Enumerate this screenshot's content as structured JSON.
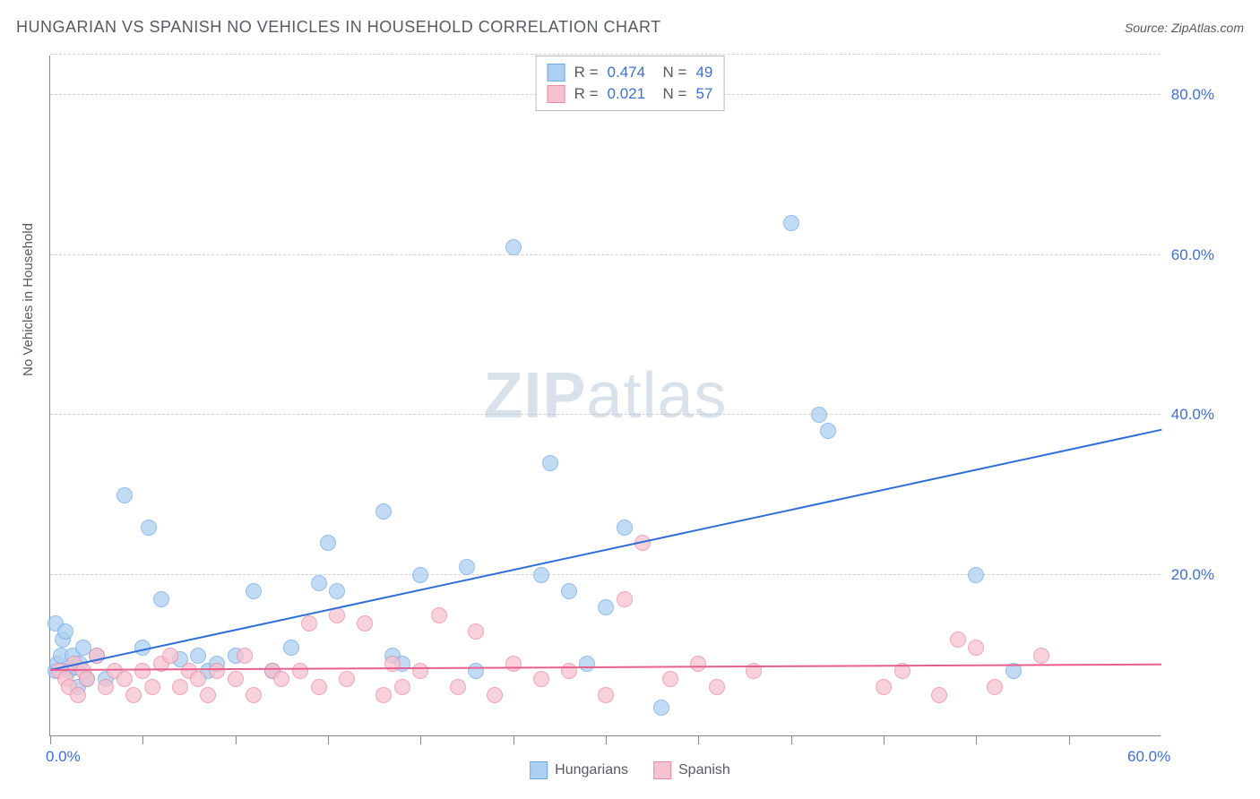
{
  "title": "HUNGARIAN VS SPANISH NO VEHICLES IN HOUSEHOLD CORRELATION CHART",
  "source": "Source: ZipAtlas.com",
  "ylabel": "No Vehicles in Household",
  "watermark_a": "ZIP",
  "watermark_b": "atlas",
  "chart": {
    "type": "scatter",
    "xlim": [
      0,
      60
    ],
    "ylim": [
      0,
      85
    ],
    "background_color": "#ffffff",
    "grid_color": "#d0d0d0",
    "y_gridlines": [
      20,
      40,
      60,
      80,
      85
    ],
    "y_tick_labels": [
      {
        "v": 20,
        "t": "20.0%"
      },
      {
        "v": 40,
        "t": "40.0%"
      },
      {
        "v": 60,
        "t": "60.0%"
      },
      {
        "v": 80,
        "t": "80.0%"
      }
    ],
    "x_ticks": [
      0,
      5,
      10,
      15,
      20,
      25,
      30,
      35,
      40,
      45,
      50,
      55
    ],
    "x_tick_labels": [
      {
        "v": 0,
        "t": "0.0%"
      },
      {
        "v": 60,
        "t": "60.0%"
      }
    ],
    "marker_radius": 9,
    "marker_stroke_width": 1,
    "series": [
      {
        "name": "Hungarians",
        "fill": "#add0f2",
        "stroke": "#6fa8e8",
        "trend_color": "#2e6fd9",
        "trend": {
          "x1": 0,
          "y1": 8,
          "x2": 60,
          "y2": 38
        },
        "R": "0.474",
        "N": "49",
        "points": [
          [
            0.3,
            8
          ],
          [
            0.3,
            14
          ],
          [
            0.4,
            9
          ],
          [
            0.6,
            10
          ],
          [
            0.7,
            12
          ],
          [
            0.8,
            13
          ],
          [
            1.0,
            8
          ],
          [
            1.2,
            10
          ],
          [
            1.4,
            8.5
          ],
          [
            1.5,
            6
          ],
          [
            1.6,
            9
          ],
          [
            1.8,
            11
          ],
          [
            2.0,
            7
          ],
          [
            2.5,
            10
          ],
          [
            3.0,
            7
          ],
          [
            4.0,
            30
          ],
          [
            5.0,
            11
          ],
          [
            5.3,
            26
          ],
          [
            6.0,
            17
          ],
          [
            7.0,
            9.5
          ],
          [
            8.0,
            10
          ],
          [
            8.5,
            8
          ],
          [
            9.0,
            9
          ],
          [
            10.0,
            10
          ],
          [
            11.0,
            18
          ],
          [
            12.0,
            8
          ],
          [
            13.0,
            11
          ],
          [
            14.5,
            19
          ],
          [
            15.0,
            24
          ],
          [
            15.5,
            18
          ],
          [
            18.0,
            28
          ],
          [
            18.5,
            10
          ],
          [
            19.0,
            9
          ],
          [
            20.0,
            20
          ],
          [
            22.5,
            21
          ],
          [
            23.0,
            8
          ],
          [
            25.0,
            61
          ],
          [
            26.5,
            20
          ],
          [
            27.0,
            34
          ],
          [
            28.0,
            18
          ],
          [
            29.0,
            9
          ],
          [
            30.0,
            16
          ],
          [
            31.0,
            26
          ],
          [
            33.0,
            3.5
          ],
          [
            40.0,
            64
          ],
          [
            41.5,
            40
          ],
          [
            42.0,
            38
          ],
          [
            50.0,
            20
          ],
          [
            52.0,
            8
          ]
        ]
      },
      {
        "name": "Spanish",
        "fill": "#f6c2cf",
        "stroke": "#e98aa4",
        "trend_color": "#e85f8e",
        "trend": {
          "x1": 0,
          "y1": 8,
          "x2": 60,
          "y2": 8.7
        },
        "R": "0.021",
        "N": "57",
        "points": [
          [
            0.5,
            8
          ],
          [
            0.8,
            7
          ],
          [
            1.0,
            6
          ],
          [
            1.3,
            9
          ],
          [
            1.5,
            5
          ],
          [
            1.8,
            8
          ],
          [
            2.0,
            7
          ],
          [
            2.5,
            10
          ],
          [
            3.0,
            6
          ],
          [
            3.5,
            8
          ],
          [
            4.0,
            7
          ],
          [
            4.5,
            5
          ],
          [
            5.0,
            8
          ],
          [
            5.5,
            6
          ],
          [
            6.0,
            9
          ],
          [
            6.5,
            10
          ],
          [
            7.0,
            6
          ],
          [
            7.5,
            8
          ],
          [
            8.0,
            7
          ],
          [
            8.5,
            5
          ],
          [
            9.0,
            8
          ],
          [
            10.0,
            7
          ],
          [
            10.5,
            10
          ],
          [
            11.0,
            5
          ],
          [
            12.0,
            8
          ],
          [
            12.5,
            7
          ],
          [
            13.5,
            8
          ],
          [
            14.0,
            14
          ],
          [
            14.5,
            6
          ],
          [
            15.5,
            15
          ],
          [
            16.0,
            7
          ],
          [
            17.0,
            14
          ],
          [
            18.0,
            5
          ],
          [
            18.5,
            9
          ],
          [
            19.0,
            6
          ],
          [
            20.0,
            8
          ],
          [
            21.0,
            15
          ],
          [
            22.0,
            6
          ],
          [
            23.0,
            13
          ],
          [
            24.0,
            5
          ],
          [
            25.0,
            9
          ],
          [
            26.5,
            7
          ],
          [
            28.0,
            8
          ],
          [
            30.0,
            5
          ],
          [
            31.0,
            17
          ],
          [
            32.0,
            24
          ],
          [
            33.5,
            7
          ],
          [
            35.0,
            9
          ],
          [
            36.0,
            6
          ],
          [
            38.0,
            8
          ],
          [
            45.0,
            6
          ],
          [
            46.0,
            8
          ],
          [
            48.0,
            5
          ],
          [
            49.0,
            12
          ],
          [
            50.0,
            11
          ],
          [
            51.0,
            6
          ],
          [
            53.5,
            10
          ]
        ]
      }
    ]
  },
  "legend_top": {
    "label_R": "R =",
    "label_N": "N =",
    "text_color": "#555b61",
    "value_color": "#3d6fd6"
  },
  "colors": {
    "title": "#555b61",
    "axis_label": "#3d6fd6"
  }
}
